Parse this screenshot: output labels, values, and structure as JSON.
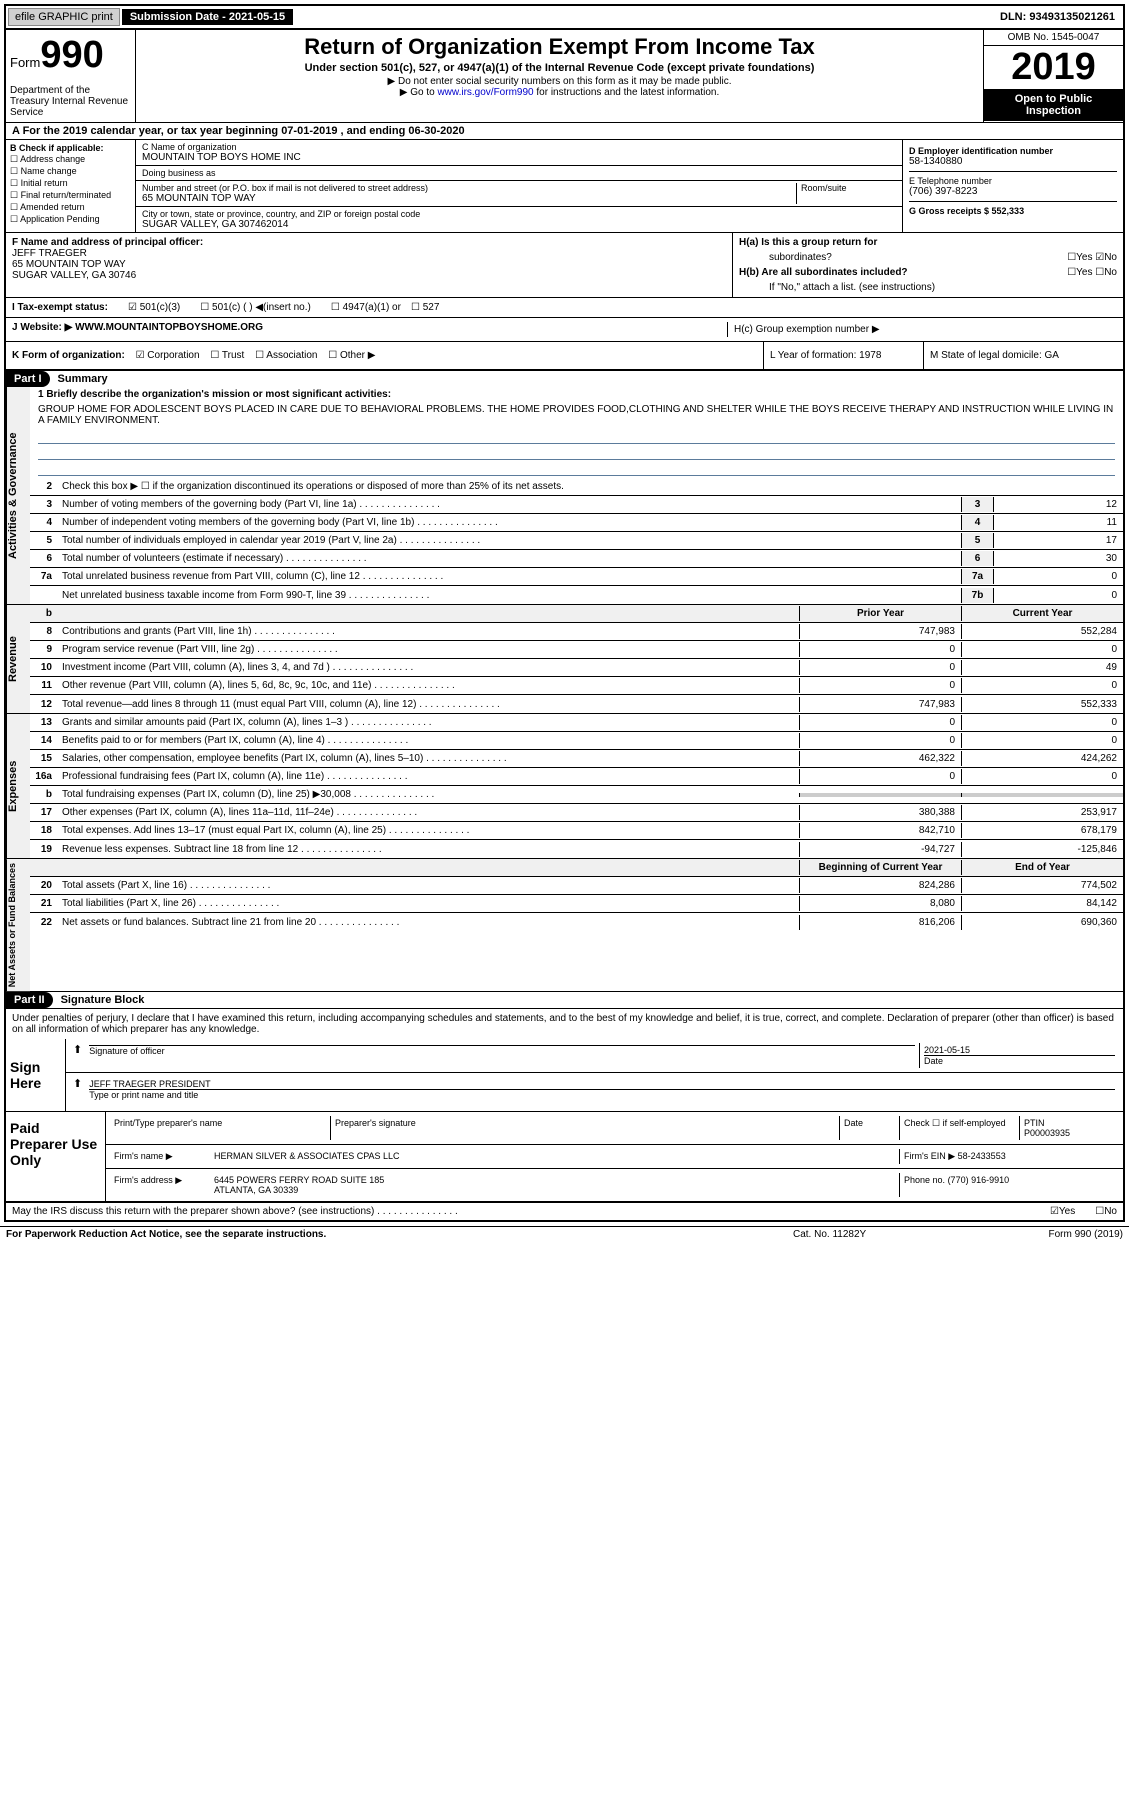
{
  "top": {
    "efile_btn": "efile GRAPHIC print",
    "sub_label": "Submission Date - 2021-05-15",
    "dln": "DLN: 93493135021261"
  },
  "header": {
    "form_label": "Form",
    "form_num": "990",
    "dept": "Department of the Treasury\nInternal Revenue Service",
    "title": "Return of Organization Exempt From Income Tax",
    "subtitle": "Under section 501(c), 527, or 4947(a)(1) of the Internal Revenue Code (except private foundations)",
    "note1": "▶ Do not enter social security numbers on this form as it may be made public.",
    "note2_pre": "▶ Go to ",
    "note2_link": "www.irs.gov/Form990",
    "note2_post": " for instructions and the latest information.",
    "omb": "OMB No. 1545-0047",
    "year": "2019",
    "inspection": "Open to Public Inspection"
  },
  "tax_year": "A For the 2019 calendar year, or tax year beginning 07-01-2019   , and ending 06-30-2020",
  "b": {
    "label": "B Check if applicable:",
    "opts": [
      "☐ Address change",
      "☐ Name change",
      "☐ Initial return",
      "☐ Final return/terminated",
      "☐ Amended return",
      "☐ Application Pending"
    ]
  },
  "c": {
    "name_label": "C Name of organization",
    "name": "MOUNTAIN TOP BOYS HOME INC",
    "dba_label": "Doing business as",
    "dba": "",
    "addr_label": "Number and street (or P.O. box if mail is not delivered to street address)",
    "addr": "65 MOUNTAIN TOP WAY",
    "room_label": "Room/suite",
    "city_label": "City or town, state or province, country, and ZIP or foreign postal code",
    "city": "SUGAR VALLEY, GA  307462014"
  },
  "d": {
    "ein_label": "D Employer identification number",
    "ein": "58-1340880",
    "phone_label": "E Telephone number",
    "phone": "(706) 397-8223",
    "receipts_label": "G Gross receipts $ 552,333"
  },
  "f": {
    "label": "F  Name and address of principal officer:",
    "name": "JEFF TRAEGER",
    "addr1": "65 MOUNTAIN TOP WAY",
    "addr2": "SUGAR VALLEY, GA  30746"
  },
  "h": {
    "a_label": "H(a)  Is this a group return for",
    "a_sub": "subordinates?",
    "a_yes": "☐Yes ☑No",
    "b_label": "H(b)  Are all subordinates included?",
    "b_yes": "☐Yes  ☐No",
    "b_note": "If \"No,\" attach a list. (see instructions)",
    "c_label": "H(c)  Group exemption number ▶"
  },
  "i": {
    "label": "I   Tax-exempt status:",
    "opt1": "☑ 501(c)(3)",
    "opt2": "☐ 501(c) (  ) ◀(insert no.)",
    "opt3": "☐ 4947(a)(1) or",
    "opt4": "☐ 527"
  },
  "j": {
    "label": "J   Website: ▶",
    "url": "WWW.MOUNTAINTOPBOYSHOME.ORG"
  },
  "k": {
    "label": "K Form of organization:",
    "corp": "☑ Corporation",
    "trust": "☐ Trust",
    "assoc": "☐ Association",
    "other": "☐ Other ▶",
    "l": "L Year of formation: 1978",
    "m": "M State of legal domicile: GA"
  },
  "part1": {
    "header": "Part I",
    "title": "Summary",
    "line1_label": "1  Briefly describe the organization's mission or most significant activities:",
    "mission": "GROUP HOME FOR ADOLESCENT BOYS PLACED IN CARE DUE TO BEHAVIORAL PROBLEMS. THE HOME PROVIDES FOOD,CLOTHING AND SHELTER WHILE THE BOYS RECEIVE THERAPY AND INSTRUCTION WHILE LIVING IN A FAMILY ENVIRONMENT.",
    "line2": "Check this box ▶ ☐  if the organization discontinued its operations or disposed of more than 25% of its net assets.",
    "lines": [
      {
        "n": "3",
        "t": "Number of voting members of the governing body (Part VI, line 1a)",
        "b": "3",
        "v": "12"
      },
      {
        "n": "4",
        "t": "Number of independent voting members of the governing body (Part VI, line 1b)",
        "b": "4",
        "v": "11"
      },
      {
        "n": "5",
        "t": "Total number of individuals employed in calendar year 2019 (Part V, line 2a)",
        "b": "5",
        "v": "17"
      },
      {
        "n": "6",
        "t": "Total number of volunteers (estimate if necessary)",
        "b": "6",
        "v": "30"
      },
      {
        "n": "7a",
        "t": "Total unrelated business revenue from Part VIII, column (C), line 12",
        "b": "7a",
        "v": "0"
      },
      {
        "n": "",
        "t": "Net unrelated business taxable income from Form 990-T, line 39",
        "b": "7b",
        "v": "0"
      }
    ],
    "side1": "Activities & Governance"
  },
  "revenue": {
    "side": "Revenue",
    "prior_hdr": "Prior Year",
    "curr_hdr": "Current Year",
    "lines": [
      {
        "n": "8",
        "t": "Contributions and grants (Part VIII, line 1h)",
        "p": "747,983",
        "c": "552,284"
      },
      {
        "n": "9",
        "t": "Program service revenue (Part VIII, line 2g)",
        "p": "0",
        "c": "0"
      },
      {
        "n": "10",
        "t": "Investment income (Part VIII, column (A), lines 3, 4, and 7d )",
        "p": "0",
        "c": "49"
      },
      {
        "n": "11",
        "t": "Other revenue (Part VIII, column (A), lines 5, 6d, 8c, 9c, 10c, and 11e)",
        "p": "0",
        "c": "0"
      },
      {
        "n": "12",
        "t": "Total revenue—add lines 8 through 11 (must equal Part VIII, column (A), line 12)",
        "p": "747,983",
        "c": "552,333"
      }
    ]
  },
  "expenses": {
    "side": "Expenses",
    "lines": [
      {
        "n": "13",
        "t": "Grants and similar amounts paid (Part IX, column (A), lines 1–3 )",
        "p": "0",
        "c": "0"
      },
      {
        "n": "14",
        "t": "Benefits paid to or for members (Part IX, column (A), line 4)",
        "p": "0",
        "c": "0"
      },
      {
        "n": "15",
        "t": "Salaries, other compensation, employee benefits (Part IX, column (A), lines 5–10)",
        "p": "462,322",
        "c": "424,262"
      },
      {
        "n": "16a",
        "t": "Professional fundraising fees (Part IX, column (A), line 11e)",
        "p": "0",
        "c": "0"
      },
      {
        "n": "b",
        "t": "Total fundraising expenses (Part IX, column (D), line 25) ▶30,008",
        "p": "",
        "c": "",
        "gray": true
      },
      {
        "n": "17",
        "t": "Other expenses (Part IX, column (A), lines 11a–11d, 11f–24e)",
        "p": "380,388",
        "c": "253,917"
      },
      {
        "n": "18",
        "t": "Total expenses. Add lines 13–17 (must equal Part IX, column (A), line 25)",
        "p": "842,710",
        "c": "678,179"
      },
      {
        "n": "19",
        "t": "Revenue less expenses. Subtract line 18 from line 12",
        "p": "-94,727",
        "c": "-125,846"
      }
    ]
  },
  "netassets": {
    "side": "Net Assets or Fund Balances",
    "begin_hdr": "Beginning of Current Year",
    "end_hdr": "End of Year",
    "lines": [
      {
        "n": "20",
        "t": "Total assets (Part X, line 16)",
        "p": "824,286",
        "c": "774,502"
      },
      {
        "n": "21",
        "t": "Total liabilities (Part X, line 26)",
        "p": "8,080",
        "c": "84,142"
      },
      {
        "n": "22",
        "t": "Net assets or fund balances. Subtract line 21 from line 20",
        "p": "816,206",
        "c": "690,360"
      }
    ]
  },
  "part2": {
    "header": "Part II",
    "title": "Signature Block",
    "decl": "Under penalties of perjury, I declare that I have examined this return, including accompanying schedules and statements, and to the best of my knowledge and belief, it is true, correct, and complete. Declaration of preparer (other than officer) is based on all information of which preparer has any knowledge."
  },
  "sign": {
    "label": "Sign Here",
    "sig_label": "Signature of officer",
    "date": "2021-05-15",
    "date_label": "Date",
    "name": "JEFF TRAEGER  PRESIDENT",
    "name_label": "Type or print name and title"
  },
  "paid": {
    "label": "Paid Preparer Use Only",
    "prep_name_label": "Print/Type preparer's name",
    "prep_sig_label": "Preparer's signature",
    "prep_date_label": "Date",
    "self_emp": "Check ☐ if self-employed",
    "ptin_label": "PTIN",
    "ptin": "P00003935",
    "firm_name_label": "Firm's name   ▶",
    "firm_name": "HERMAN SILVER & ASSOCIATES CPAS LLC",
    "firm_ein_label": "Firm's EIN ▶",
    "firm_ein": "58-2433553",
    "firm_addr_label": "Firm's address ▶",
    "firm_addr1": "6445 POWERS FERRY ROAD SUITE 185",
    "firm_addr2": "ATLANTA, GA  30339",
    "firm_phone_label": "Phone no.",
    "firm_phone": "(770) 916-9910"
  },
  "discuss": {
    "text": "May the IRS discuss this return with the preparer shown above? (see instructions)",
    "yes": "☑Yes",
    "no": "☐No"
  },
  "footer": {
    "left": "For Paperwork Reduction Act Notice, see the separate instructions.",
    "mid": "Cat. No. 11282Y",
    "right": "Form 990 (2019)"
  }
}
